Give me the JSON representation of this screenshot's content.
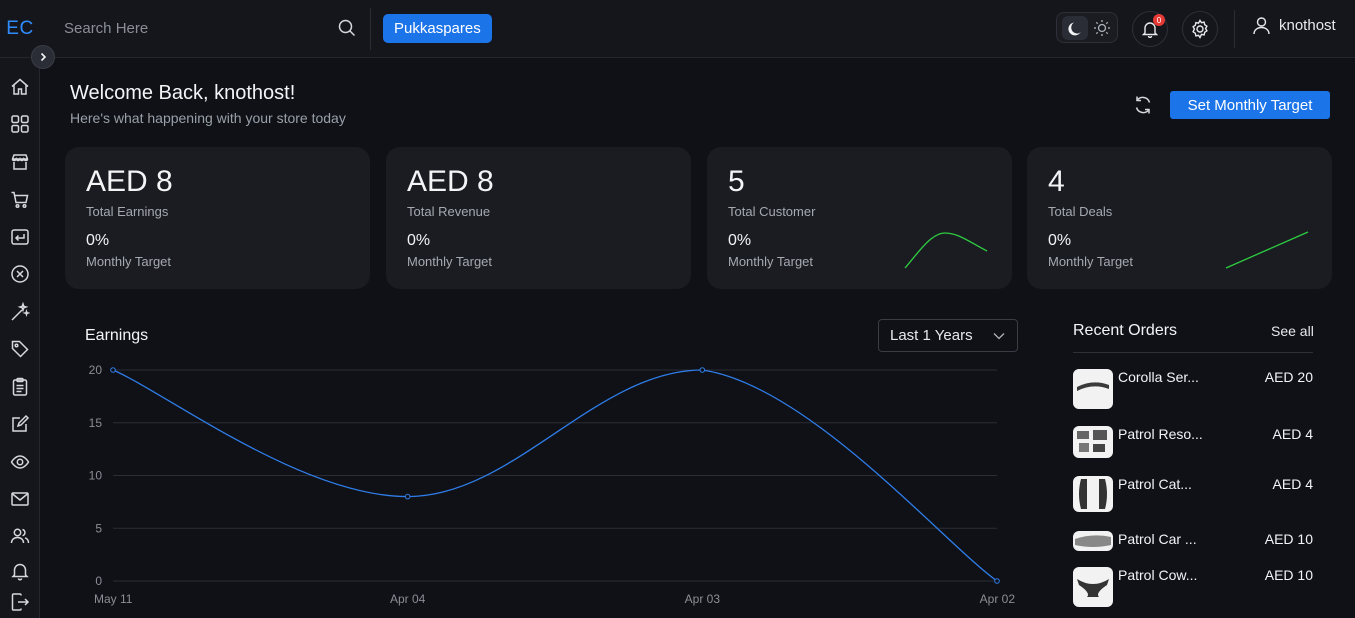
{
  "brand": {
    "logo_text": "EC"
  },
  "search": {
    "placeholder": "Search Here"
  },
  "store": {
    "name": "Pukkaspares"
  },
  "notifications": {
    "count": "0"
  },
  "user": {
    "name": "knothost"
  },
  "header": {
    "welcome": "Welcome Back, knothost!",
    "subtitle": "Here's what happening with your store today",
    "target_button": "Set Monthly Target"
  },
  "stats": [
    {
      "value": "AED 8",
      "label": "Total Earnings",
      "percent": "0%",
      "sub": "Monthly Target"
    },
    {
      "value": "AED 8",
      "label": "Total Revenue",
      "percent": "0%",
      "sub": "Monthly Target"
    },
    {
      "value": "5",
      "label": "Total Customer",
      "percent": "0%",
      "sub": "Monthly Target"
    },
    {
      "value": "4",
      "label": "Total Deals",
      "percent": "0%",
      "sub": "Monthly Target"
    }
  ],
  "earnings": {
    "title": "Earnings",
    "range": "Last 1 Years"
  },
  "chart_data": {
    "type": "line",
    "title": "Earnings",
    "categories": [
      "May 11",
      "Apr 04",
      "Apr 03",
      "Apr 02"
    ],
    "values": [
      20,
      8,
      20,
      0
    ],
    "ylim": [
      0,
      20
    ],
    "yticks": [
      0,
      5,
      10,
      15,
      20
    ],
    "grid": true,
    "color": "#2f7de8"
  },
  "recent_orders": {
    "title": "Recent Orders",
    "see_all": "See all",
    "items": [
      {
        "name": "Corolla Ser...",
        "price": "AED 20"
      },
      {
        "name": "Patrol Reso...",
        "price": "AED 4"
      },
      {
        "name": "Patrol Cat...",
        "price": "AED 4"
      },
      {
        "name": "Patrol Car ...",
        "price": "AED 10"
      },
      {
        "name": "Patrol Cow...",
        "price": "AED 10"
      }
    ]
  },
  "colors": {
    "accent": "#1c74e9",
    "background": "#0f1117",
    "card": "#1a1c22",
    "spark": "#2ecc40",
    "badge": "#e53935"
  },
  "sidebar_icons": [
    "home-icon",
    "grid-icon",
    "store-icon",
    "cart-icon",
    "return-icon",
    "cancel-icon",
    "magic-icon",
    "tag-icon",
    "clipboard-icon",
    "edit-icon",
    "eye-icon",
    "mail-icon",
    "users-icon",
    "bell-icon",
    "logout-icon"
  ]
}
